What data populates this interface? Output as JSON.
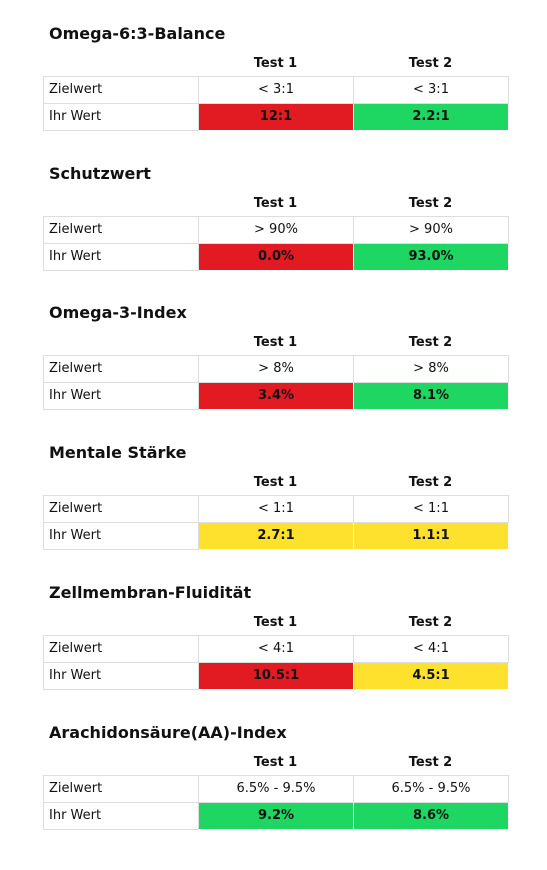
{
  "columns": {
    "test1": "Test 1",
    "test2": "Test 2"
  },
  "row_labels": {
    "target": "Zielwert",
    "yours": "Ihr Wert"
  },
  "colors": {
    "red": "#e21b23",
    "green": "#1ed762",
    "yellow": "#fde12d"
  },
  "sections": [
    {
      "title": "Omega-6:3-Balance",
      "target": {
        "test1": "< 3:1",
        "test2": "< 3:1"
      },
      "yours": {
        "test1": "12:1",
        "test2": "2.2:1"
      },
      "status": {
        "test1": "red",
        "test2": "green"
      }
    },
    {
      "title": "Schutzwert",
      "target": {
        "test1": "> 90%",
        "test2": "> 90%"
      },
      "yours": {
        "test1": "0.0%",
        "test2": "93.0%"
      },
      "status": {
        "test1": "red",
        "test2": "green"
      }
    },
    {
      "title": "Omega-3-Index",
      "target": {
        "test1": "> 8%",
        "test2": "> 8%"
      },
      "yours": {
        "test1": "3.4%",
        "test2": "8.1%"
      },
      "status": {
        "test1": "red",
        "test2": "green"
      }
    },
    {
      "title": "Mentale Stärke",
      "target": {
        "test1": "< 1:1",
        "test2": "< 1:1"
      },
      "yours": {
        "test1": "2.7:1",
        "test2": "1.1:1"
      },
      "status": {
        "test1": "yellow",
        "test2": "yellow"
      }
    },
    {
      "title": "Zellmembran-Fluidität",
      "target": {
        "test1": "< 4:1",
        "test2": "< 4:1"
      },
      "yours": {
        "test1": "10.5:1",
        "test2": "4.5:1"
      },
      "status": {
        "test1": "red",
        "test2": "yellow"
      }
    },
    {
      "title": "Arachidonsäure(AA)-Index",
      "target": {
        "test1": "6.5% - 9.5%",
        "test2": "6.5% - 9.5%"
      },
      "yours": {
        "test1": "9.2%",
        "test2": "8.6%"
      },
      "status": {
        "test1": "green",
        "test2": "green"
      }
    }
  ]
}
